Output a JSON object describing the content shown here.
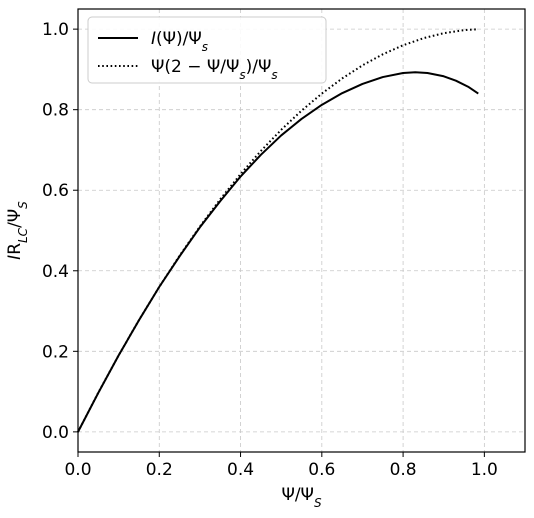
{
  "chart_data": {
    "type": "line",
    "title": "",
    "xlabel": "Ψ/Ψ_S",
    "ylabel": "IR_LC/Ψ_S",
    "xlim": [
      0.0,
      1.1
    ],
    "ylim": [
      -0.05,
      1.05
    ],
    "xticks": [
      0.0,
      0.2,
      0.4,
      0.6,
      0.8,
      1.0
    ],
    "xtick_labels": [
      "0.0",
      "0.2",
      "0.4",
      "0.6",
      "0.8",
      "1.0"
    ],
    "yticks": [
      0.0,
      0.2,
      0.4,
      0.6,
      0.8,
      1.0
    ],
    "ytick_labels": [
      "0.0",
      "0.2",
      "0.4",
      "0.6",
      "0.8",
      "1.0"
    ],
    "grid": true,
    "legend_position": "upper-left",
    "series": [
      {
        "name": "I(Ψ)/Ψ_s",
        "style": "solid",
        "color": "#000000",
        "x": [
          0.0,
          0.05,
          0.1,
          0.15,
          0.2,
          0.25,
          0.3,
          0.35,
          0.4,
          0.45,
          0.5,
          0.55,
          0.6,
          0.65,
          0.7,
          0.75,
          0.8,
          0.83,
          0.86,
          0.9,
          0.93,
          0.96,
          0.985
        ],
        "y": [
          0.0,
          0.097,
          0.19,
          0.277,
          0.36,
          0.436,
          0.508,
          0.573,
          0.634,
          0.688,
          0.736,
          0.777,
          0.812,
          0.841,
          0.864,
          0.881,
          0.891,
          0.893,
          0.891,
          0.883,
          0.872,
          0.857,
          0.84
        ]
      },
      {
        "name": "Ψ(2 − Ψ/Ψ_s)/Ψ_s",
        "style": "dotted",
        "color": "#000000",
        "x": [
          0.0,
          0.05,
          0.1,
          0.15,
          0.2,
          0.25,
          0.3,
          0.35,
          0.4,
          0.45,
          0.5,
          0.55,
          0.6,
          0.65,
          0.7,
          0.75,
          0.8,
          0.85,
          0.9,
          0.95,
          0.98
        ],
        "y": [
          0.0,
          0.0975,
          0.19,
          0.2775,
          0.36,
          0.4375,
          0.51,
          0.5775,
          0.64,
          0.6975,
          0.75,
          0.7975,
          0.84,
          0.8775,
          0.91,
          0.9375,
          0.96,
          0.9775,
          0.99,
          0.9975,
          0.9996
        ]
      }
    ]
  }
}
